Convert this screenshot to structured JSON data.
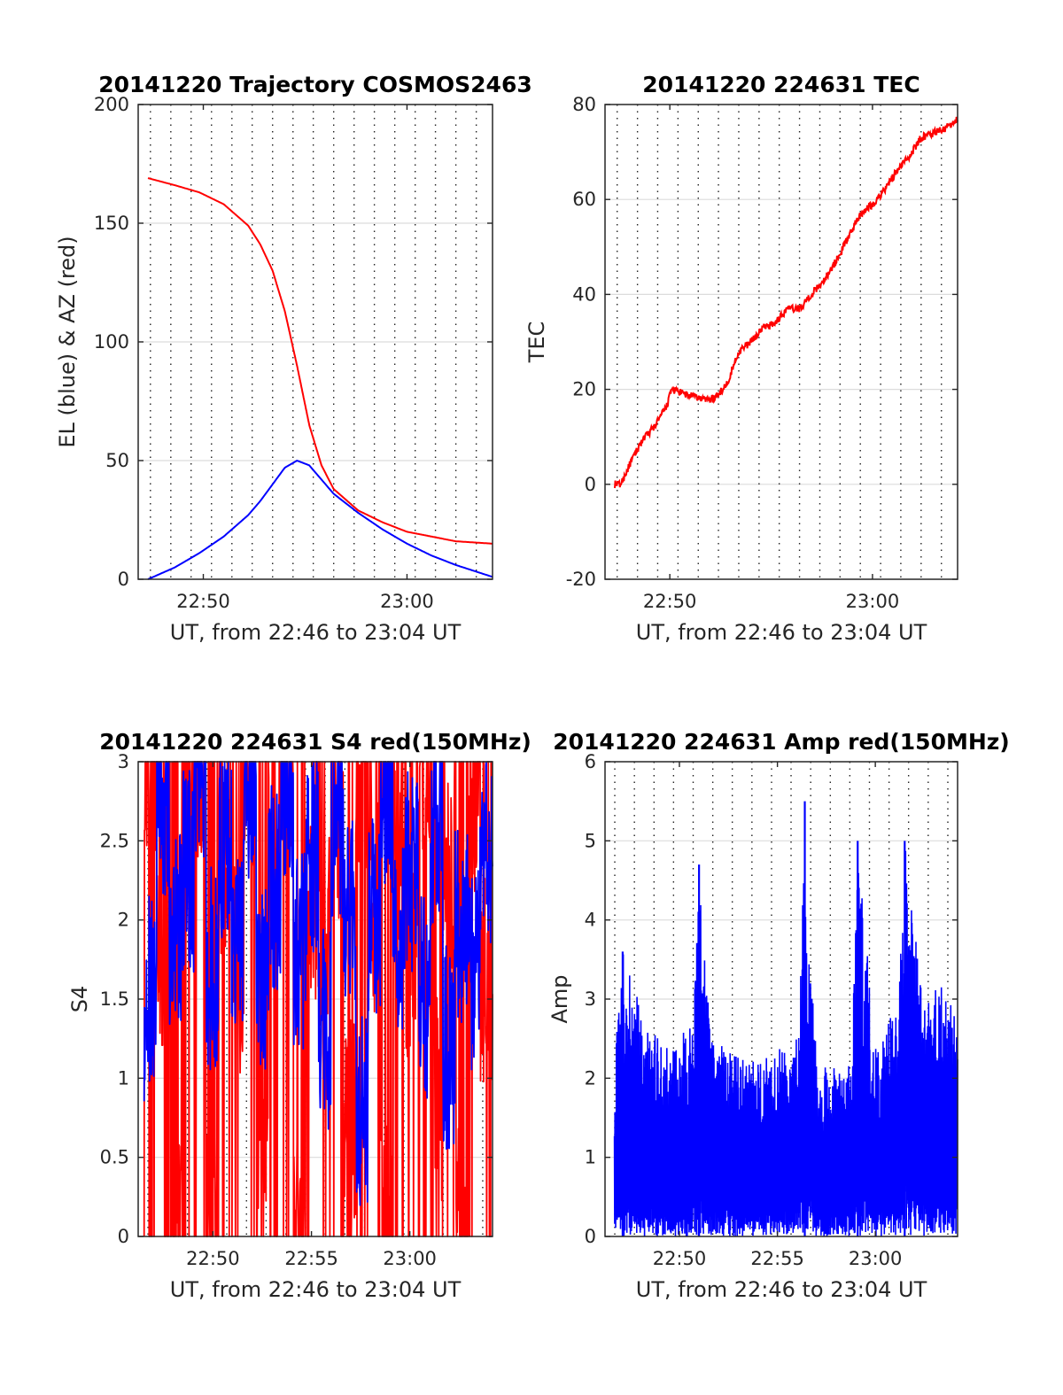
{
  "figure": {
    "subplots": 4
  },
  "chart_data": [
    {
      "id": "trajectory",
      "type": "line",
      "title": "20141220 Trajectory COSMOS2463",
      "xlabel": "UT, from 22:46 to 23:04 UT",
      "ylabel": "EL (blue) & AZ (red)",
      "xlim": [
        22.78,
        23.07
      ],
      "ylim": [
        0,
        200
      ],
      "yticks": [
        0,
        50,
        100,
        150,
        200
      ],
      "xticks": [
        {
          "value": 22.8333,
          "label": "22:50"
        },
        {
          "value": 23.0,
          "label": "23:00"
        }
      ],
      "vgrid": [
        22.79,
        22.8067,
        22.8233,
        22.84,
        22.8567,
        22.8733,
        22.89,
        22.9067,
        22.9233,
        22.94,
        22.9567,
        22.9733,
        22.99,
        23.0067,
        23.0233,
        23.04,
        23.0567
      ],
      "hgrid": true,
      "series": [
        {
          "name": "AZ",
          "color": "#ff0000",
          "x": [
            22.788,
            22.81,
            22.83,
            22.85,
            22.87,
            22.88,
            22.89,
            22.9,
            22.91,
            22.92,
            22.93,
            22.94,
            22.96,
            22.98,
            23.0,
            23.02,
            23.04,
            23.07
          ],
          "values": [
            169,
            166,
            163,
            158,
            149,
            141,
            130,
            113,
            90,
            65,
            48,
            38,
            29,
            24,
            20,
            18,
            16,
            15
          ]
        },
        {
          "name": "EL",
          "color": "#0000ff",
          "x": [
            22.788,
            22.81,
            22.83,
            22.85,
            22.87,
            22.88,
            22.89,
            22.9,
            22.91,
            22.92,
            22.93,
            22.94,
            22.96,
            22.98,
            23.0,
            23.02,
            23.04,
            23.07
          ],
          "values": [
            0,
            5,
            11,
            18,
            27,
            33,
            40,
            47,
            50,
            48,
            42,
            36,
            28,
            21,
            15,
            10,
            6,
            1
          ]
        }
      ]
    },
    {
      "id": "tec",
      "type": "line",
      "title": "20141220 224631 TEC",
      "xlabel": "UT, from 22:46 to 23:04 UT",
      "ylabel": "TEC",
      "xlim": [
        22.78,
        23.07
      ],
      "ylim": [
        -20,
        80
      ],
      "yticks": [
        -20,
        0,
        20,
        40,
        60,
        80
      ],
      "xticks": [
        {
          "value": 22.8333,
          "label": "22:50"
        },
        {
          "value": 23.0,
          "label": "23:00"
        }
      ],
      "vgrid": [
        22.79,
        22.8067,
        22.8233,
        22.84,
        22.8567,
        22.8733,
        22.89,
        22.9067,
        22.9233,
        22.94,
        22.9567,
        22.9733,
        22.99,
        23.0067,
        23.0233,
        23.04,
        23.0567
      ],
      "hgrid": true,
      "series": [
        {
          "name": "TEC",
          "color": "#ff0000",
          "x": [
            22.788,
            22.793,
            22.8,
            22.81,
            22.82,
            22.83,
            22.835,
            22.845,
            22.86,
            22.87,
            22.88,
            22.89,
            22.9,
            22.91,
            22.92,
            22.93,
            22.94,
            22.96,
            22.97,
            22.98,
            22.99,
            23.0,
            23.01,
            23.02,
            23.03,
            23.04,
            23.05,
            23.06,
            23.07
          ],
          "values": [
            0,
            0,
            4,
            9,
            12,
            16,
            20,
            19,
            18,
            18,
            21,
            28,
            30,
            33,
            34,
            37,
            37,
            43,
            47,
            52,
            57,
            59,
            62,
            66,
            69,
            73,
            74,
            75,
            77
          ]
        }
      ]
    },
    {
      "id": "s4",
      "type": "line",
      "title": "20141220 224631 S4 red(150MHz)",
      "xlabel": "UT, from 22:46 to 23:04 UT",
      "ylabel": "S4",
      "xlim": [
        22.77,
        23.07
      ],
      "ylim": [
        0,
        3
      ],
      "yticks": [
        0,
        0.5,
        1,
        1.5,
        2,
        2.5,
        3
      ],
      "ytick_labels": [
        "0",
        "0.5",
        "1",
        "1.5",
        "2",
        "2.5",
        "3"
      ],
      "xticks": [
        {
          "value": 22.8333,
          "label": "22:50"
        },
        {
          "value": 22.9167,
          "label": "22:55"
        },
        {
          "value": 23.0,
          "label": "23:00"
        }
      ],
      "vgrid": [
        22.7783,
        22.795,
        22.8117,
        22.8283,
        22.845,
        22.8617,
        22.8783,
        22.895,
        22.9117,
        22.9283,
        22.945,
        22.9617,
        22.9783,
        22.995,
        23.0117,
        23.0283,
        23.045,
        23.0617
      ],
      "hgrid": true,
      "series": [
        {
          "name": "red (150MHz)",
          "color": "#ff0000",
          "range": [
            22.775,
            23.07
          ],
          "level_pattern": [
            2.9,
            1.9,
            0.0,
            2.6,
            3.0,
            0.0,
            2.3,
            1.7,
            2.8,
            0.8,
            2.4,
            3.0,
            0.0,
            2.2,
            1.9,
            2.7,
            0.7,
            3.0,
            2.1,
            0.0,
            2.5,
            1.8,
            3.0,
            0.9,
            2.3,
            0.0,
            2.8,
            1.6
          ]
        },
        {
          "name": "blue",
          "color": "#0000ff",
          "range": [
            22.775,
            23.07
          ],
          "level_pattern": [
            1.5,
            2.7,
            1.9,
            2.3,
            3.0,
            1.7,
            2.5,
            2.0,
            2.9,
            1.6,
            2.2,
            2.8,
            1.8,
            2.4,
            1.3,
            2.6,
            2.1,
            0.8,
            2.0,
            2.7,
            1.9,
            2.3,
            1.5,
            2.6,
            1.2,
            2.0,
            1.7,
            2.4
          ]
        }
      ]
    },
    {
      "id": "amp",
      "type": "line",
      "title": "20141220 224631 Amp red(150MHz)",
      "xlabel": "UT, from 22:46 to 23:04 UT",
      "ylabel": "Amp",
      "xlim": [
        22.77,
        23.07
      ],
      "ylim": [
        0,
        6
      ],
      "yticks": [
        0,
        1,
        2,
        3,
        4,
        5,
        6
      ],
      "xticks": [
        {
          "value": 22.8333,
          "label": "22:50"
        },
        {
          "value": 22.9167,
          "label": "22:55"
        },
        {
          "value": 23.0,
          "label": "23:00"
        }
      ],
      "vgrid": [
        22.7783,
        22.795,
        22.8117,
        22.8283,
        22.845,
        22.8617,
        22.8783,
        22.895,
        22.9117,
        22.9283,
        22.945,
        22.9617,
        22.9783,
        22.995,
        23.0117,
        23.0283,
        23.045,
        23.0617
      ],
      "hgrid": true,
      "series": [
        {
          "name": "Amp",
          "color": "#0000ff",
          "filled_noise": true,
          "range": [
            22.778,
            23.07
          ],
          "envelope_x": [
            22.778,
            22.785,
            22.8,
            22.815,
            22.83,
            22.845,
            22.85,
            22.86,
            22.88,
            22.9,
            22.92,
            22.935,
            22.94,
            22.95,
            22.97,
            22.98,
            22.985,
            23.0,
            23.02,
            23.025,
            23.04,
            23.06,
            23.07
          ],
          "envelope_max": [
            2.3,
            3.6,
            2.9,
            2.5,
            2.4,
            2.8,
            4.7,
            2.5,
            2.3,
            2.2,
            2.4,
            2.6,
            5.5,
            2.2,
            2.1,
            2.2,
            5.0,
            2.4,
            3.0,
            5.0,
            3.0,
            3.2,
            2.8
          ]
        }
      ]
    }
  ]
}
